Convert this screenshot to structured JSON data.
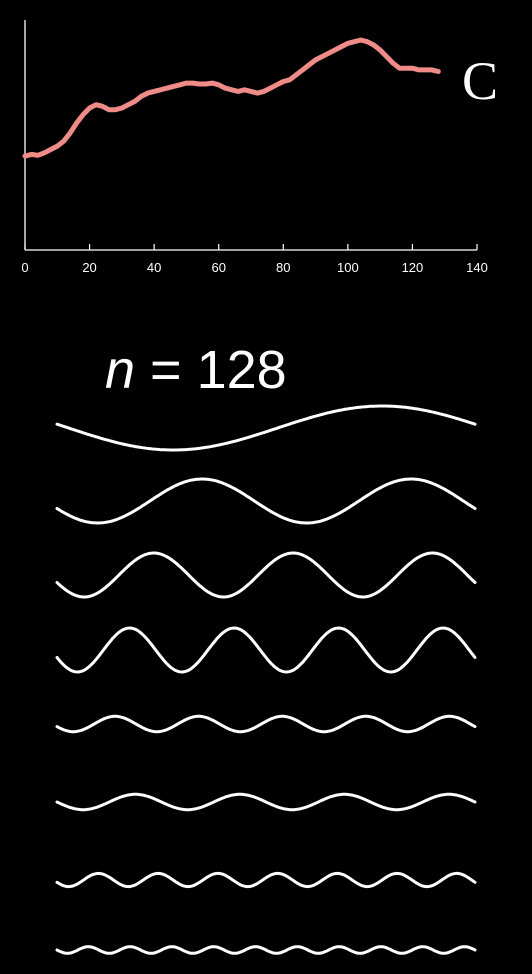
{
  "chart_data": [
    {
      "type": "line",
      "title": "",
      "panel_label": "C",
      "xlabel": "",
      "ylabel": "",
      "xlim": [
        0,
        140
      ],
      "x_ticks": [
        "0",
        "20",
        "40",
        "60",
        "80",
        "100",
        "120",
        "140"
      ],
      "grid": false,
      "series": [
        {
          "color": "#f08c87",
          "x": [
            0,
            2,
            4,
            6,
            8,
            10,
            12,
            14,
            16,
            18,
            20,
            22,
            24,
            26,
            28,
            30,
            32,
            34,
            36,
            38,
            40,
            42,
            44,
            46,
            48,
            50,
            52,
            54,
            56,
            58,
            60,
            62,
            64,
            66,
            68,
            70,
            72,
            74,
            76,
            78,
            80,
            82,
            84,
            86,
            88,
            90,
            92,
            94,
            96,
            98,
            100,
            102,
            104,
            106,
            108,
            110,
            112,
            114,
            116,
            118,
            120,
            122,
            124,
            126,
            128
          ],
          "y": [
            0.12,
            0.13,
            0.125,
            0.14,
            0.16,
            0.18,
            0.21,
            0.26,
            0.32,
            0.37,
            0.41,
            0.43,
            0.42,
            0.4,
            0.4,
            0.41,
            0.43,
            0.45,
            0.48,
            0.5,
            0.51,
            0.52,
            0.53,
            0.54,
            0.55,
            0.56,
            0.56,
            0.555,
            0.555,
            0.56,
            0.55,
            0.53,
            0.52,
            0.51,
            0.52,
            0.51,
            0.5,
            0.51,
            0.53,
            0.55,
            0.57,
            0.58,
            0.61,
            0.64,
            0.67,
            0.7,
            0.72,
            0.74,
            0.76,
            0.78,
            0.8,
            0.81,
            0.82,
            0.81,
            0.79,
            0.76,
            0.72,
            0.68,
            0.65,
            0.65,
            0.65,
            0.64,
            0.64,
            0.64,
            0.63
          ]
        }
      ]
    },
    {
      "type": "line",
      "title": "n = 128",
      "title_var": "n",
      "title_rest": " = 128",
      "xlabel": "",
      "ylabel": "",
      "description_series": "stacked sinusoid components of increasing frequency",
      "series": [
        {
          "cycles": 1,
          "amplitude": 1.0,
          "phase_deg": 170
        },
        {
          "cycles": 2,
          "amplitude": 1.0,
          "phase_deg": 200
        },
        {
          "cycles": 3,
          "amplitude": 1.0,
          "phase_deg": 200
        },
        {
          "cycles": 4,
          "amplitude": 1.0,
          "phase_deg": 200
        },
        {
          "cycles": 5,
          "amplitude": 0.35,
          "phase_deg": 200
        },
        {
          "cycles": 4,
          "amplitude": 0.35,
          "phase_deg": 180
        },
        {
          "cycles": 7,
          "amplitude": 0.3,
          "phase_deg": 200
        },
        {
          "cycles": 10,
          "amplitude": 0.15,
          "phase_deg": 180
        }
      ],
      "line_color": "#ffffff"
    }
  ]
}
